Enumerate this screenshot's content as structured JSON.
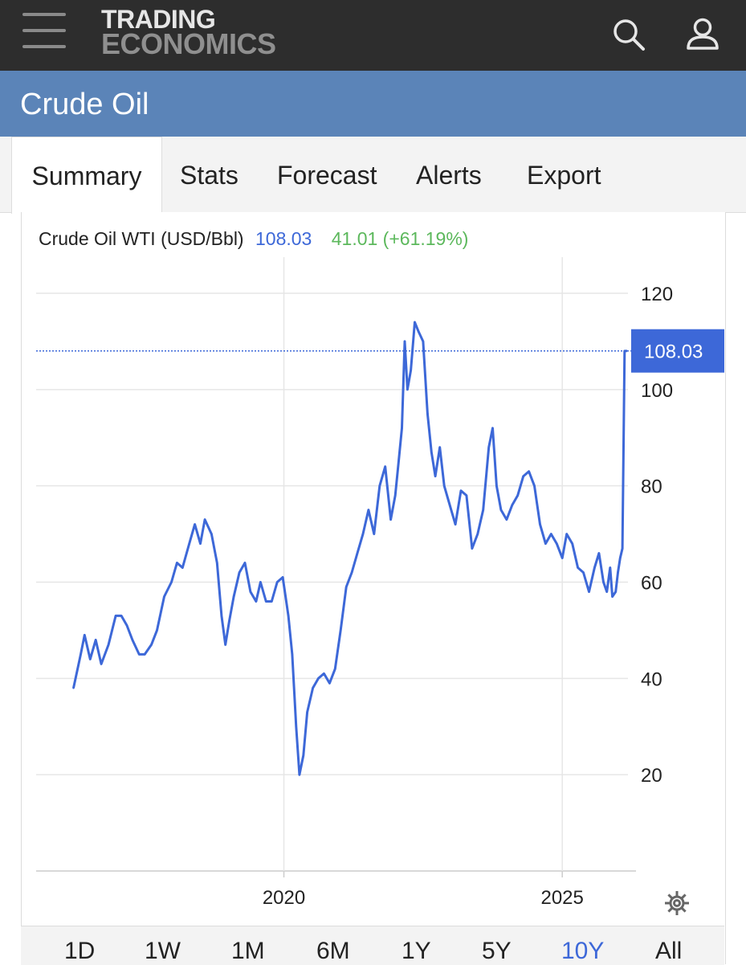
{
  "header": {
    "logo_line1": "TRADING",
    "logo_line2": "ECONOMICS",
    "icons": [
      "menu-icon",
      "search-icon",
      "user-icon"
    ]
  },
  "page": {
    "title": "Crude Oil"
  },
  "tabs": [
    {
      "label": "Summary",
      "active": true
    },
    {
      "label": "Stats"
    },
    {
      "label": "Forecast"
    },
    {
      "label": "Alerts"
    },
    {
      "label": "Export"
    }
  ],
  "quote": {
    "name": "Crude Oil WTI (USD/Bbl)",
    "price": "108.03",
    "change": "41.01 (+61.19%)"
  },
  "colors": {
    "line": "#3d68d8",
    "positive": "#5cb85c",
    "header_bg": "#2d2d2d",
    "title_bg": "#5b84b8"
  },
  "ranges": [
    "1D",
    "1W",
    "1M",
    "6M",
    "1Y",
    "5Y",
    "10Y",
    "All"
  ],
  "active_range": "10Y",
  "chart_data": {
    "type": "line",
    "title": "Crude Oil WTI (USD/Bbl)",
    "y_ticks": [
      "120",
      "100",
      "80",
      "60",
      "40",
      "20"
    ],
    "x_ticks": [
      "2020",
      "2025"
    ],
    "ylim": [
      0,
      120
    ],
    "grid": true,
    "last_value_label": "108.03",
    "series": [
      {
        "name": "Crude Oil WTI",
        "x": [
          2016.22,
          2016.35,
          2016.42,
          2016.52,
          2016.62,
          2016.72,
          2016.85,
          2016.98,
          2017.08,
          2017.18,
          2017.28,
          2017.4,
          2017.5,
          2017.62,
          2017.72,
          2017.85,
          2017.98,
          2018.08,
          2018.18,
          2018.3,
          2018.4,
          2018.5,
          2018.58,
          2018.7,
          2018.8,
          2018.88,
          2018.95,
          2019.02,
          2019.1,
          2019.2,
          2019.3,
          2019.4,
          2019.5,
          2019.58,
          2019.68,
          2019.78,
          2019.88,
          2019.98,
          2020.08,
          2020.15,
          2020.22,
          2020.28,
          2020.35,
          2020.42,
          2020.52,
          2020.62,
          2020.72,
          2020.82,
          2020.92,
          2021.02,
          2021.12,
          2021.22,
          2021.32,
          2021.42,
          2021.52,
          2021.62,
          2021.72,
          2021.82,
          2021.92,
          2022.0,
          2022.06,
          2022.12,
          2022.17,
          2022.22,
          2022.28,
          2022.35,
          2022.42,
          2022.5,
          2022.58,
          2022.65,
          2022.72,
          2022.8,
          2022.88,
          2022.98,
          2023.08,
          2023.18,
          2023.28,
          2023.38,
          2023.48,
          2023.58,
          2023.68,
          2023.75,
          2023.82,
          2023.9,
          2024.0,
          2024.1,
          2024.2,
          2024.3,
          2024.4,
          2024.5,
          2024.6,
          2024.7,
          2024.8,
          2024.9,
          2025.0,
          2025.08,
          2025.18,
          2025.28,
          2025.38,
          2025.48,
          2025.58,
          2025.66,
          2025.74,
          2025.8,
          2025.86,
          2025.9,
          2025.96,
          2026.0,
          2026.04,
          2026.08,
          2026.12,
          2026.16
        ],
        "values": [
          38,
          45,
          49,
          44,
          48,
          43,
          47,
          53,
          53,
          51,
          48,
          45,
          45,
          47,
          50,
          57,
          60,
          64,
          63,
          68,
          72,
          68,
          73,
          70,
          64,
          53,
          47,
          52,
          57,
          62,
          64,
          58,
          56,
          60,
          56,
          56,
          60,
          61,
          53,
          45,
          30,
          20,
          24,
          33,
          38,
          40,
          41,
          39,
          42,
          50,
          59,
          62,
          66,
          70,
          75,
          70,
          80,
          84,
          73,
          78,
          85,
          92,
          110,
          100,
          104,
          114,
          112,
          110,
          95,
          87,
          82,
          88,
          80,
          76,
          72,
          79,
          78,
          67,
          70,
          75,
          88,
          92,
          80,
          75,
          73,
          76,
          78,
          82,
          83,
          80,
          72,
          68,
          70,
          68,
          65,
          70,
          68,
          63,
          62,
          58,
          63,
          66,
          60,
          58,
          63,
          57,
          58,
          62,
          65,
          67,
          108,
          108.03
        ]
      }
    ]
  }
}
